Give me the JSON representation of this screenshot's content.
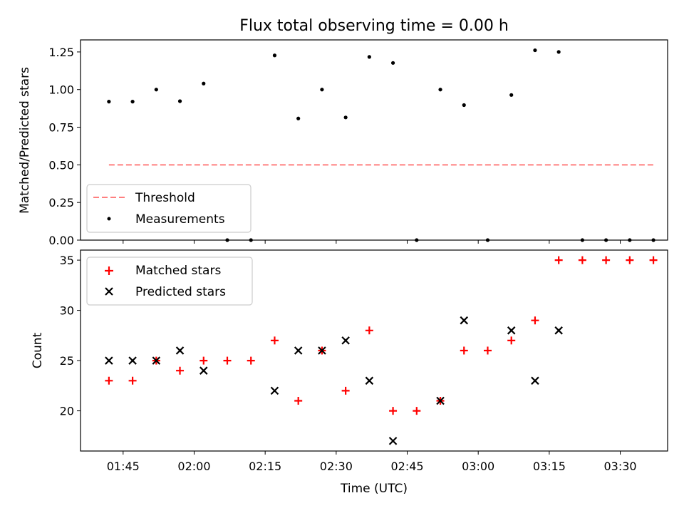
{
  "figure": {
    "title": "Flux total observing time = 0.00 h"
  },
  "chart_data": [
    {
      "type": "scatter",
      "panel": "top",
      "title": "Flux total observing time = 0.00 h",
      "xlabel": "",
      "ylabel": "Matched/Predicted stars",
      "xlim": [
        "01:36",
        "03:40"
      ],
      "ylim": [
        0,
        1.33
      ],
      "yticks": [
        0.0,
        0.25,
        0.5,
        0.75,
        1.0,
        1.25
      ],
      "ytick_labels": [
        "0.00",
        "0.25",
        "0.50",
        "0.75",
        "1.00",
        "1.25"
      ],
      "legend": {
        "placement": "lower-left",
        "entries": [
          {
            "label": "Threshold",
            "style": "dashed-line",
            "color": "#ff7f7f"
          },
          {
            "label": "Measurements",
            "style": "dot",
            "color": "#000000"
          }
        ]
      },
      "threshold": {
        "name": "Threshold",
        "value": 0.5,
        "x_start": "01:42",
        "x_end": "03:37",
        "color": "#ff7f7f"
      },
      "series": [
        {
          "name": "Measurements",
          "color": "#000000",
          "x": [
            "01:42",
            "01:47",
            "01:52",
            "01:57",
            "02:02",
            "02:07",
            "02:12",
            "02:17",
            "02:22",
            "02:27",
            "02:32",
            "02:37",
            "02:42",
            "02:47",
            "02:52",
            "02:57",
            "03:02",
            "03:07",
            "03:12",
            "03:17",
            "03:22",
            "03:27",
            "03:32",
            "03:37"
          ],
          "y": [
            0.92,
            0.92,
            1.0,
            0.923,
            1.04,
            0.0,
            0.0,
            1.227,
            0.808,
            1.0,
            0.815,
            1.217,
            1.177,
            0.0,
            1.0,
            0.897,
            0.0,
            0.964,
            1.261,
            1.25,
            0.0,
            0.0,
            0.0,
            0.0
          ]
        }
      ]
    },
    {
      "type": "scatter",
      "panel": "bottom",
      "xlabel": "Time (UTC)",
      "ylabel": "Count",
      "xlim": [
        "01:36",
        "03:40"
      ],
      "ylim": [
        16.0,
        36.0
      ],
      "yticks": [
        20,
        25,
        30,
        35
      ],
      "ytick_labels": [
        "20",
        "25",
        "30",
        "35"
      ],
      "xticks": [
        "01:45",
        "02:00",
        "02:15",
        "02:30",
        "02:45",
        "03:00",
        "03:15",
        "03:30"
      ],
      "legend": {
        "placement": "top-left",
        "entries": [
          {
            "label": "Matched stars",
            "marker": "+",
            "color": "#ff0000"
          },
          {
            "label": "Predicted stars",
            "marker": "x",
            "color": "#000000"
          }
        ]
      },
      "categories": [
        "01:42",
        "01:47",
        "01:52",
        "01:57",
        "02:02",
        "02:07",
        "02:12",
        "02:17",
        "02:22",
        "02:27",
        "02:32",
        "02:37",
        "02:42",
        "02:47",
        "02:52",
        "02:57",
        "03:02",
        "03:07",
        "03:12",
        "03:17",
        "03:22",
        "03:27",
        "03:32",
        "03:37"
      ],
      "series": [
        {
          "name": "Matched stars",
          "marker": "+",
          "color": "#ff0000",
          "values": [
            23,
            23,
            25,
            24,
            25,
            25,
            25,
            27,
            21,
            26,
            22,
            28,
            20,
            20,
            21,
            26,
            26,
            27,
            29,
            35,
            35,
            35,
            35,
            35
          ]
        },
        {
          "name": "Predicted stars",
          "marker": "x",
          "color": "#000000",
          "values": [
            25,
            25,
            25,
            26,
            24,
            null,
            null,
            22,
            26,
            26,
            27,
            23,
            17,
            null,
            21,
            29,
            null,
            28,
            23,
            28,
            null,
            null,
            null,
            null
          ]
        }
      ]
    }
  ]
}
